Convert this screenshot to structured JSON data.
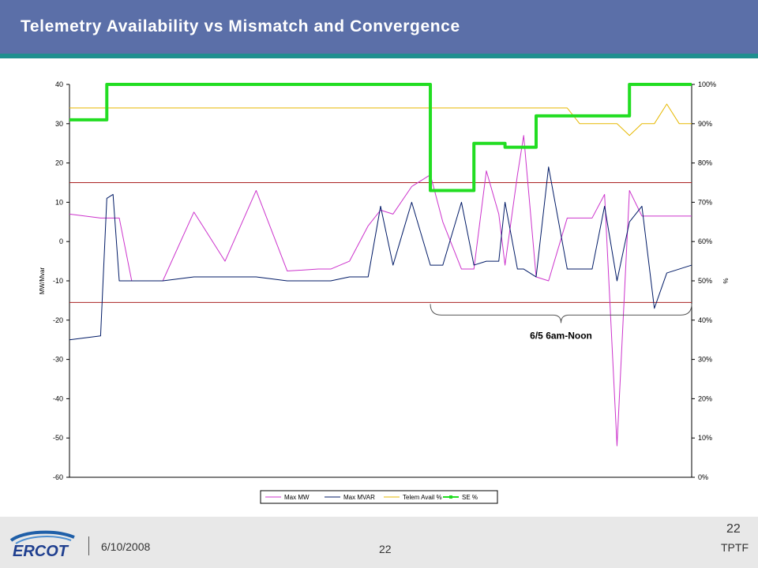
{
  "slide": {
    "title": "Telemetry Availability vs Mismatch and Convergence",
    "date": "6/10/2008",
    "page_number": "22",
    "page_number_center": "22",
    "organization": "TPTF",
    "logo_text": "ERCOT"
  },
  "colors": {
    "title_bar": "#5b6fa8",
    "title_underline": "#1f8f8f",
    "max_mw": "#cc33cc",
    "max_mvar": "#001a66",
    "telem_avail": "#e6b800",
    "se": "#22dd22",
    "limit_lines": "#aa2222"
  },
  "chart_data": {
    "type": "line",
    "ylabel": "MW/Mvar",
    "y2label": "%",
    "ylim": [
      -60,
      40
    ],
    "y_ticks": [
      "40",
      "30",
      "20",
      "10",
      "0",
      "-10",
      "-20",
      "-30",
      "-40",
      "-50",
      "-60"
    ],
    "y2lim": [
      0,
      100
    ],
    "y2_ticks": [
      "100%",
      "90%",
      "80%",
      "70%",
      "60%",
      "50%",
      "40%",
      "30%",
      "20%",
      "10%",
      "0%"
    ],
    "x": [
      0,
      5,
      6,
      7,
      8,
      10,
      15,
      20,
      25,
      30,
      35,
      40,
      42,
      45,
      48,
      50,
      52,
      55,
      58,
      60,
      63,
      65,
      67,
      69,
      70,
      72,
      73,
      75,
      77,
      80,
      82,
      84,
      86,
      88,
      90,
      92,
      94,
      96,
      98,
      100
    ],
    "horizontal_lines_mw": [
      15,
      -15.5
    ],
    "annotation": {
      "text": "6/5 6am-Noon",
      "x_from": 58,
      "x_to": 100
    },
    "legend": [
      "Max MW",
      "Max MVAR",
      "Telem Avail %",
      "SE %"
    ],
    "legend_position": "bottom",
    "series": [
      {
        "name": "Max MW",
        "axis": "left",
        "values": [
          7,
          6,
          6,
          6,
          6,
          -10,
          -10,
          7.5,
          -5,
          13,
          -7.5,
          -7,
          -7,
          -5,
          4,
          8,
          7,
          14,
          17,
          5,
          -7,
          -7,
          18,
          7,
          -6,
          17,
          27,
          -9,
          -10,
          6,
          6,
          6,
          12,
          -52,
          13,
          6.5,
          6.5,
          6.5,
          6.5,
          6.5
        ]
      },
      {
        "name": "Max MVAR",
        "axis": "left",
        "values": [
          -25,
          -24,
          11,
          12,
          -10,
          -10,
          -10,
          -9,
          -9,
          -9,
          -10,
          -10,
          -10,
          -9,
          -9,
          9,
          -6,
          10,
          -6,
          -6,
          10,
          -6,
          -5,
          -5,
          10,
          -7,
          -7,
          -9,
          19,
          -7,
          -7,
          -7,
          9,
          -10,
          5,
          9,
          -17,
          -8,
          -7,
          -6
        ]
      },
      {
        "name": "Telem Avail %",
        "axis": "right",
        "values": [
          94,
          94,
          94,
          94,
          94,
          94,
          94,
          94,
          94,
          94,
          94,
          94,
          94,
          94,
          94,
          94,
          94,
          94,
          94,
          94,
          94,
          94,
          94,
          94,
          94,
          94,
          94,
          94,
          94,
          94,
          90,
          90,
          90,
          90,
          87,
          90,
          90,
          95,
          90,
          90
        ]
      },
      {
        "name": "SE %",
        "axis": "right",
        "values": [
          91,
          91,
          100,
          100,
          100,
          100,
          100,
          100,
          100,
          100,
          100,
          100,
          100,
          100,
          100,
          100,
          100,
          100,
          73,
          73,
          73,
          85,
          85,
          85,
          84,
          84,
          84,
          92,
          92,
          92,
          92,
          92,
          92,
          92,
          100,
          100,
          100,
          100,
          100,
          100
        ]
      }
    ]
  }
}
